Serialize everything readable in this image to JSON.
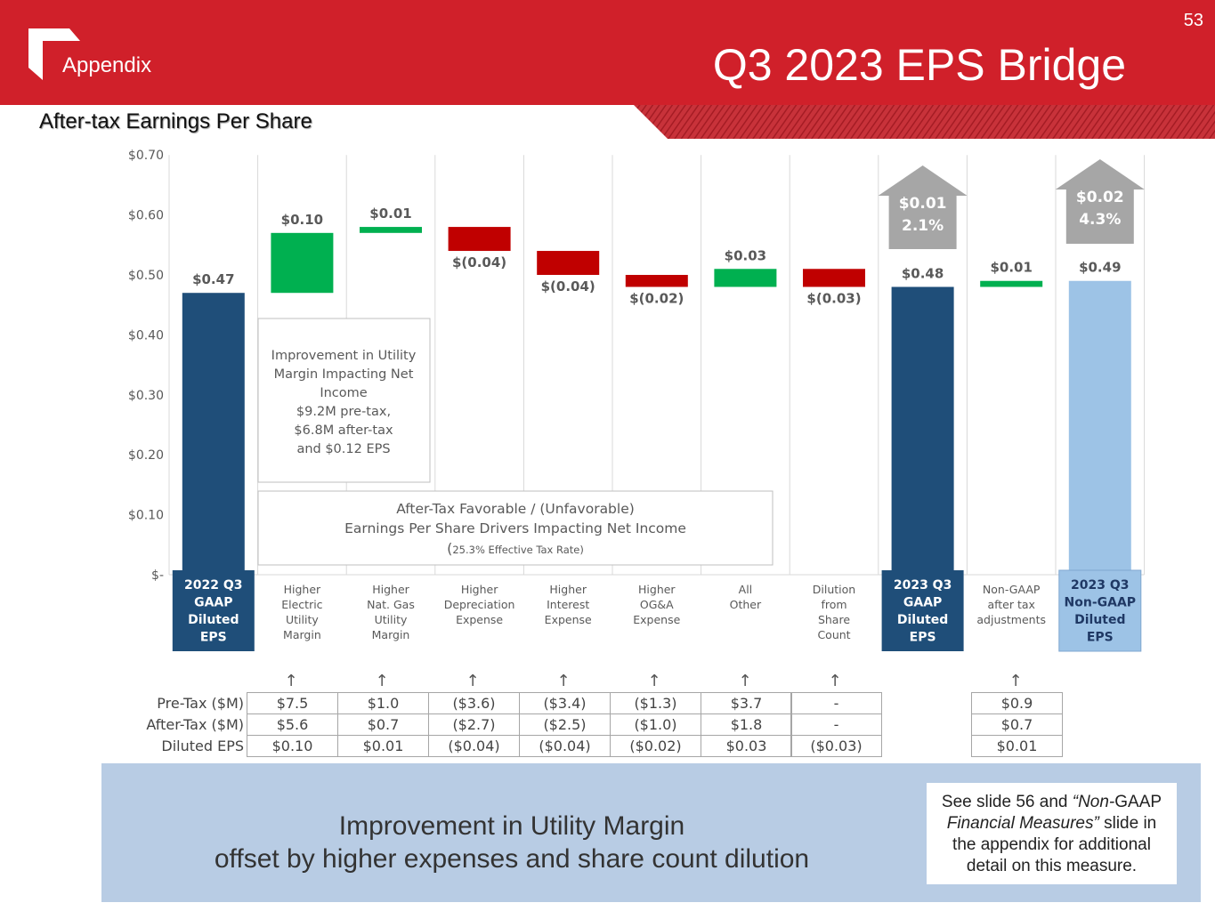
{
  "header": {
    "section": "Appendix",
    "title": "Q3 2023 EPS Bridge",
    "page_number": "53",
    "subtitle": "After-tax Earnings Per Share"
  },
  "colors": {
    "brand_red": "#d0202a",
    "navy": "#1f4e79",
    "light_blue": "#9dc3e6",
    "green": "#00b050",
    "red": "#c00000",
    "gray": "#a6a6a6",
    "panel": "#b8cce4"
  },
  "chart_data": {
    "type": "bar",
    "subtype": "waterfall",
    "title": "After-tax Earnings Per Share",
    "ylim": [
      0,
      0.7
    ],
    "yticks": [
      0,
      0.1,
      0.2,
      0.3,
      0.4,
      0.5,
      0.6,
      0.7
    ],
    "ytick_labels": [
      "$-",
      "$0.10",
      "$0.20",
      "$0.30",
      "$0.40",
      "$0.50",
      "$0.60",
      "$0.70"
    ],
    "grid": "vertical",
    "categories": [
      {
        "label": [
          "2022 Q3",
          "GAAP",
          "Diluted",
          "EPS"
        ],
        "kind": "total",
        "base": 0,
        "value": 0.47,
        "value_label": "$0.47"
      },
      {
        "label": [
          "Higher",
          "Electric",
          "Utility",
          "Margin"
        ],
        "kind": "increase",
        "base": 0.47,
        "value": 0.1,
        "value_label": "$0.10"
      },
      {
        "label": [
          "Higher",
          "Nat. Gas",
          "Utility",
          "Margin"
        ],
        "kind": "increase",
        "base": 0.57,
        "value": 0.01,
        "value_label": "$0.01"
      },
      {
        "label": [
          "Higher",
          "Depreciation",
          "Expense"
        ],
        "kind": "decrease",
        "base": 0.58,
        "value": -0.04,
        "value_label": "$(0.04)"
      },
      {
        "label": [
          "Higher",
          "Interest",
          "Expense"
        ],
        "kind": "decrease",
        "base": 0.54,
        "value": -0.04,
        "value_label": "$(0.04)"
      },
      {
        "label": [
          "Higher",
          "OG&A",
          "Expense"
        ],
        "kind": "decrease",
        "base": 0.5,
        "value": -0.02,
        "value_label": "$(0.02)"
      },
      {
        "label": [
          "All",
          "Other"
        ],
        "kind": "increase",
        "base": 0.48,
        "value": 0.03,
        "value_label": "$0.03"
      },
      {
        "label": [
          "Dilution",
          "from",
          "Share",
          "Count"
        ],
        "kind": "decrease",
        "base": 0.51,
        "value": -0.03,
        "value_label": "$(0.03)"
      },
      {
        "label": [
          "2023 Q3",
          "GAAP",
          "Diluted",
          "EPS"
        ],
        "kind": "total",
        "base": 0,
        "value": 0.48,
        "value_label": "$0.48"
      },
      {
        "label": [
          "Non-GAAP",
          "after tax",
          "adjustments"
        ],
        "kind": "increase",
        "base": 0.48,
        "value": 0.01,
        "value_label": "$0.01"
      },
      {
        "label": [
          "2023 Q3",
          "Non-GAAP",
          "Diluted",
          "EPS"
        ],
        "kind": "total-nongaap",
        "base": 0,
        "value": 0.49,
        "value_label": "$0.49"
      }
    ],
    "callout_arrows": [
      {
        "category_index": 8,
        "lines": [
          "$0.01",
          "2.1%"
        ]
      },
      {
        "category_index": 10,
        "lines": [
          "$0.02",
          "4.3%"
        ]
      }
    ],
    "annotations": {
      "utility_margin": [
        "Improvement in Utility",
        "Margin Impacting Net",
        "Income",
        "$9.2M pre-tax,",
        "$6.8M after-tax",
        "and $0.12 EPS"
      ],
      "drivers": [
        "After-Tax Favorable / (Unfavorable)",
        "Earnings Per Share Drivers Impacting Net Income"
      ],
      "tax_rate_open": "(",
      "tax_rate": "25.3% Effective Tax Rate)"
    }
  },
  "table": {
    "rows": [
      {
        "label": "Pre-Tax ($M)",
        "values": [
          "$7.5",
          "$1.0",
          "($3.6)",
          "($3.4)",
          "($1.3)",
          "$3.7",
          "-"
        ],
        "nongaap": "$0.9"
      },
      {
        "label": "After-Tax ($M)",
        "values": [
          "$5.6",
          "$0.7",
          "($2.7)",
          "($2.5)",
          "($1.0)",
          "$1.8",
          "-"
        ],
        "nongaap": "$0.7"
      },
      {
        "label": "Diluted EPS",
        "values": [
          "$0.10",
          "$0.01",
          "($0.04)",
          "($0.04)",
          "($0.02)",
          "$0.03",
          "($0.03)"
        ],
        "nongaap": "$0.01"
      }
    ],
    "arrow_glyph": "↑"
  },
  "summary": {
    "line1": "Improvement in Utility Margin",
    "line2": "offset by higher expenses and share count dilution"
  },
  "note": {
    "p1": "See slide 56 and ",
    "p2": "“Non-",
    "p3": "GAAP ",
    "p4": "Financial Measures”",
    "p5": " slide in the appendix for additional detail on this measure."
  }
}
